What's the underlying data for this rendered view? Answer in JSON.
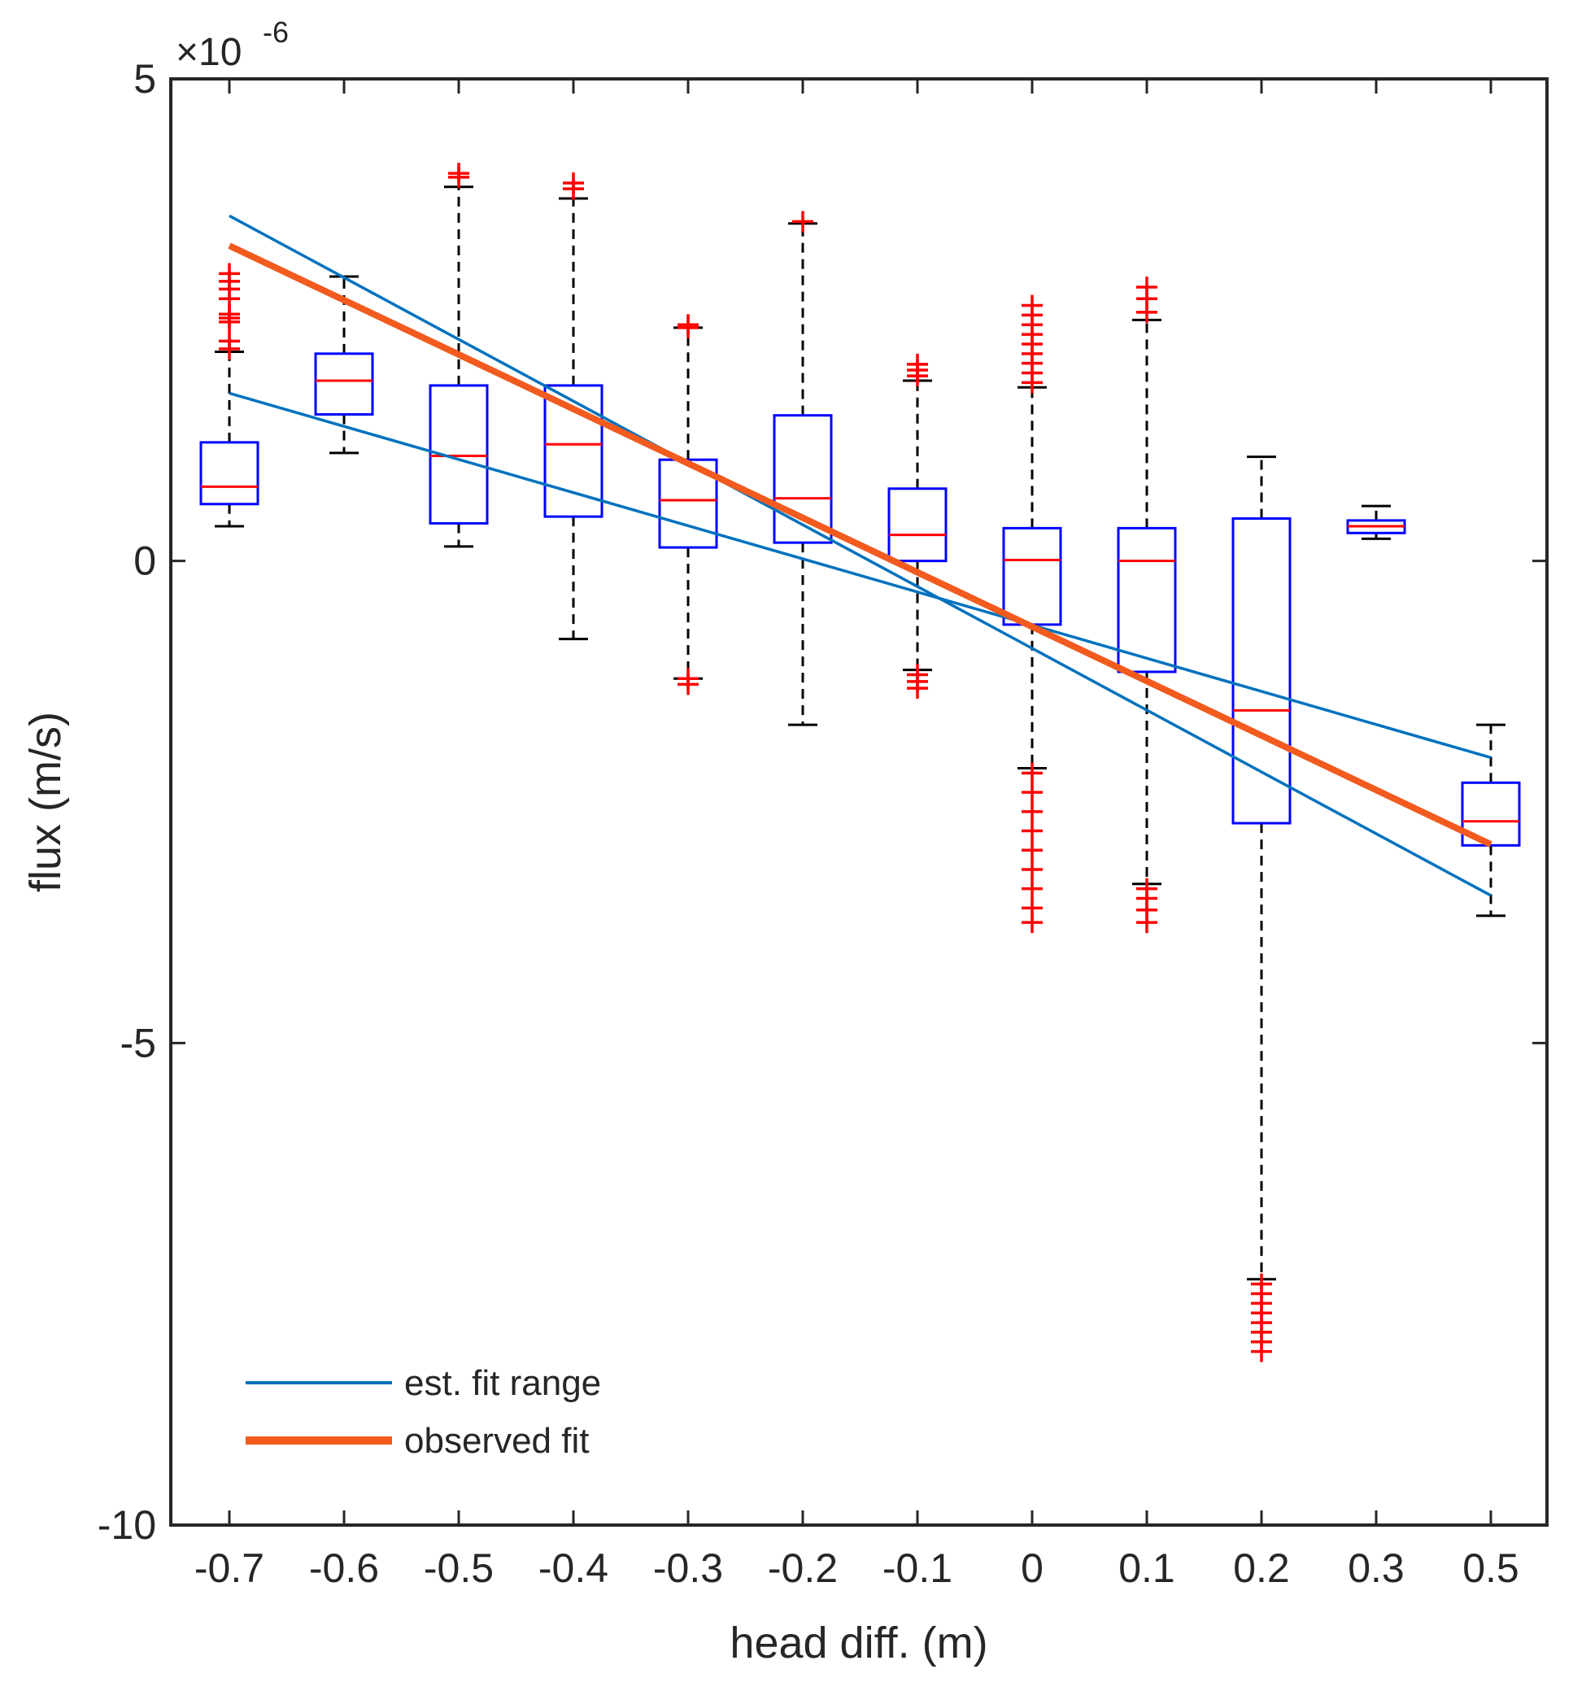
{
  "chart_data": {
    "type": "box",
    "title": "",
    "xlabel": "head diff. (m)",
    "ylabel": "flux (m/s)",
    "y_exponent_label": "×10",
    "y_exponent": "-6",
    "ylim": [
      -10,
      5
    ],
    "yticks": [
      5,
      0,
      -5,
      -10
    ],
    "ytick_labels": [
      "5",
      "0",
      "-5",
      "-10"
    ],
    "categories": [
      "-0.7",
      "-0.6",
      "-0.5",
      "-0.4",
      "-0.3",
      "-0.2",
      "-0.1",
      "0",
      "0.1",
      "0.2",
      "0.3",
      "0.5"
    ],
    "x_values": [
      -0.7,
      -0.6,
      -0.5,
      -0.4,
      -0.3,
      -0.2,
      -0.1,
      0,
      0.1,
      0.2,
      0.3,
      0.5
    ],
    "grid": false,
    "legend_position": "bottom-left",
    "legend": [
      {
        "label": "est. fit range",
        "color": "#0072BD"
      },
      {
        "label": "observed fit",
        "color": "#F25A1E"
      }
    ],
    "colors": {
      "box": "#0000FF",
      "median": "#FF0000",
      "whisker": "#000000",
      "outlier": "#FF0000",
      "fit_range": "#0072BD",
      "observed_fit": "#F25A1E",
      "axes": "#262626"
    },
    "boxes": [
      {
        "x": "-0.7",
        "whisker_low": 0.36,
        "q1": 0.59,
        "median": 0.77,
        "q3": 1.23,
        "whisker_high": 2.17,
        "outliers": [
          2.2,
          2.28,
          2.48,
          2.52,
          2.56,
          2.72,
          2.82,
          2.9,
          2.98
        ]
      },
      {
        "x": "-0.6",
        "whisker_low": 1.12,
        "q1": 1.52,
        "median": 1.87,
        "q3": 2.15,
        "whisker_high": 2.95,
        "outliers": []
      },
      {
        "x": "-0.5",
        "whisker_low": 0.15,
        "q1": 0.39,
        "median": 1.09,
        "q3": 1.82,
        "whisker_high": 3.88,
        "outliers": [
          3.98,
          4.02
        ]
      },
      {
        "x": "-0.4",
        "whisker_low": -0.81,
        "q1": 0.46,
        "median": 1.21,
        "q3": 1.82,
        "whisker_high": 3.76,
        "outliers": [
          3.86,
          3.92
        ]
      },
      {
        "x": "-0.3",
        "whisker_low": -1.22,
        "q1": 0.14,
        "median": 0.63,
        "q3": 1.05,
        "whisker_high": 2.42,
        "outliers": [
          -1.28,
          -1.22,
          2.42,
          2.45
        ]
      },
      {
        "x": "-0.2",
        "whisker_low": -1.7,
        "q1": 0.19,
        "median": 0.65,
        "q3": 1.51,
        "whisker_high": 3.5,
        "outliers": [
          3.52
        ]
      },
      {
        "x": "-0.1",
        "whisker_low": -1.13,
        "q1": 0.0,
        "median": 0.27,
        "q3": 0.75,
        "whisker_high": 1.87,
        "outliers": [
          -1.32,
          -1.25,
          -1.18,
          1.92,
          1.98,
          2.04
        ]
      },
      {
        "x": "0",
        "whisker_low": -2.15,
        "q1": -0.66,
        "median": 0.01,
        "q3": 0.34,
        "whisker_high": 1.8,
        "outliers": [
          -3.75,
          -3.6,
          -3.4,
          -3.2,
          -3.0,
          -2.8,
          -2.6,
          -2.4,
          -2.2,
          1.85,
          1.95,
          2.05,
          2.15,
          2.25,
          2.35,
          2.45,
          2.55,
          2.65
        ]
      },
      {
        "x": "0.1",
        "whisker_low": -3.35,
        "q1": -1.15,
        "median": 0.0,
        "q3": 0.34,
        "whisker_high": 2.5,
        "outliers": [
          -3.75,
          -3.62,
          -3.5,
          -3.4,
          2.58,
          2.72,
          2.84
        ]
      },
      {
        "x": "0.2",
        "whisker_low": -7.45,
        "q1": -2.72,
        "median": -1.55,
        "q3": 0.44,
        "whisker_high": 1.08,
        "outliers": [
          -8.2,
          -8.1,
          -8.0,
          -7.9,
          -7.8,
          -7.7,
          -7.6,
          -7.5
        ]
      },
      {
        "x": "0.3",
        "whisker_low": 0.23,
        "q1": 0.29,
        "median": 0.36,
        "q3": 0.42,
        "whisker_high": 0.57,
        "outliers": []
      },
      {
        "x": "0.5",
        "whisker_low": -3.68,
        "q1": -2.95,
        "median": -2.7,
        "q3": -2.3,
        "whisker_high": -1.7,
        "outliers": []
      }
    ],
    "series": [
      {
        "name": "est. fit range",
        "type": "line",
        "x": [
          -0.7,
          0.5
        ],
        "y": [
          1.74,
          -2.04
        ]
      },
      {
        "name": "est. fit range",
        "type": "line",
        "x": [
          -0.7,
          0.5
        ],
        "y": [
          3.58,
          -3.47
        ]
      },
      {
        "name": "observed fit",
        "type": "line",
        "x": [
          -0.7,
          0.5
        ],
        "y": [
          3.27,
          -2.94
        ]
      }
    ]
  }
}
